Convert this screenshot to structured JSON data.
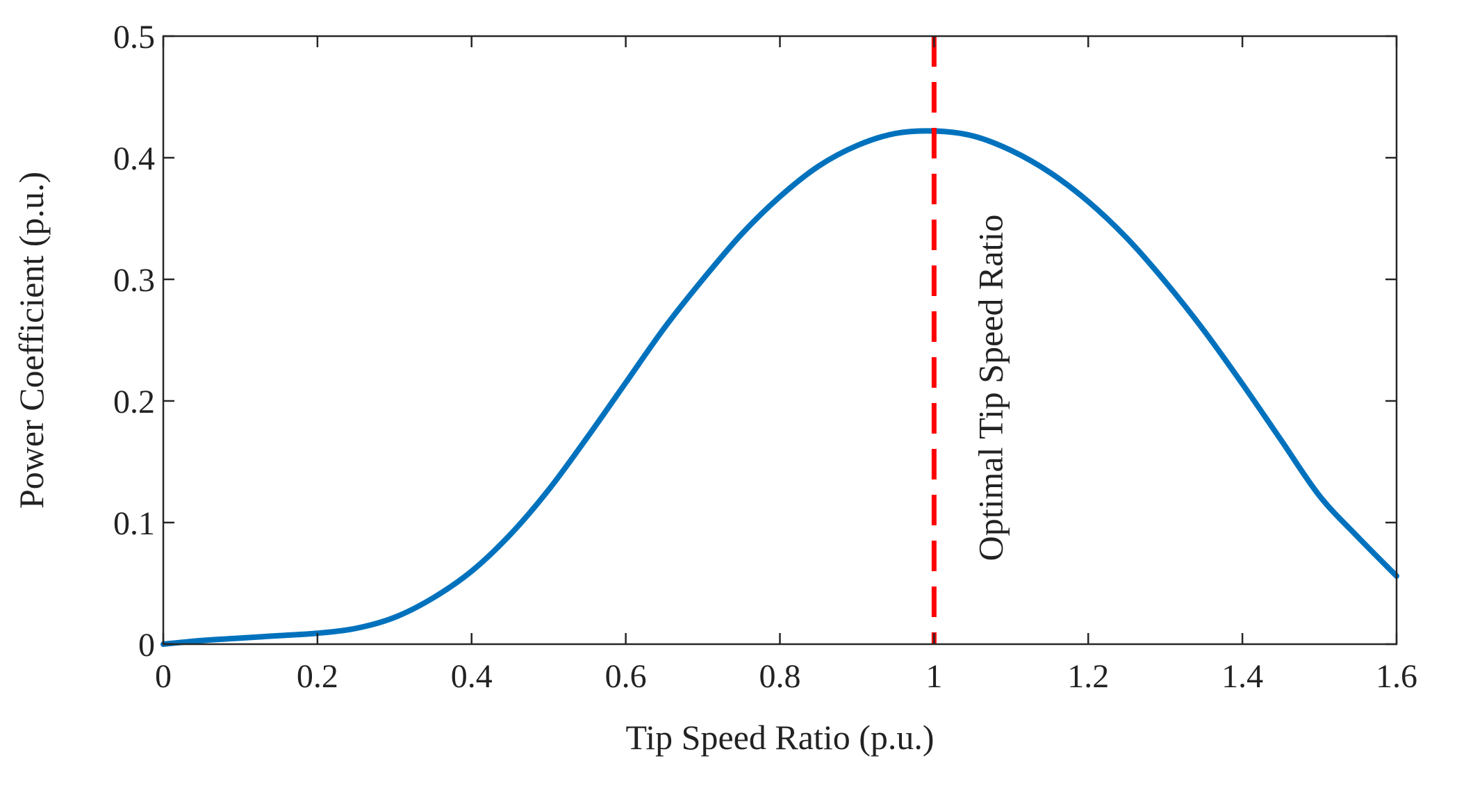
{
  "chart_data": {
    "type": "line",
    "title": "",
    "xlabel": "Tip Speed Ratio (p.u.)",
    "ylabel": "Power Coefficient (p.u.)",
    "xlim": [
      0,
      1.6
    ],
    "ylim": [
      0,
      0.5
    ],
    "xticks": [
      0,
      0.2,
      0.4,
      0.6,
      0.8,
      1,
      1.2,
      1.4,
      1.6
    ],
    "xtick_labels": [
      "0",
      "0.2",
      "0.4",
      "0.6",
      "0.8",
      "1",
      "1.2",
      "1.4",
      "1.6"
    ],
    "yticks": [
      0,
      0.1,
      0.2,
      0.3,
      0.4,
      0.5
    ],
    "ytick_labels": [
      "0",
      "0.1",
      "0.2",
      "0.3",
      "0.4",
      "0.5"
    ],
    "grid": false,
    "series": [
      {
        "name": "Power Coefficient",
        "color": "#0072BD",
        "x": [
          0,
          0.05,
          0.1,
          0.15,
          0.2,
          0.25,
          0.3,
          0.35,
          0.4,
          0.45,
          0.5,
          0.55,
          0.6,
          0.65,
          0.7,
          0.75,
          0.8,
          0.85,
          0.9,
          0.95,
          1.0,
          1.05,
          1.1,
          1.15,
          1.2,
          1.25,
          1.3,
          1.35,
          1.4,
          1.45,
          1.5,
          1.55,
          1.6
        ],
        "y": [
          0,
          0.003,
          0.005,
          0.007,
          0.009,
          0.013,
          0.022,
          0.038,
          0.06,
          0.09,
          0.127,
          0.17,
          0.215,
          0.26,
          0.3,
          0.337,
          0.368,
          0.393,
          0.41,
          0.42,
          0.422,
          0.418,
          0.406,
          0.388,
          0.364,
          0.334,
          0.298,
          0.258,
          0.214,
          0.168,
          0.122,
          0.088,
          0.056
        ]
      }
    ],
    "vlines": [
      {
        "x": 1.0,
        "color": "#FF0000",
        "style": "dashed",
        "label": "Optimal Tip Speed Ratio"
      }
    ]
  }
}
